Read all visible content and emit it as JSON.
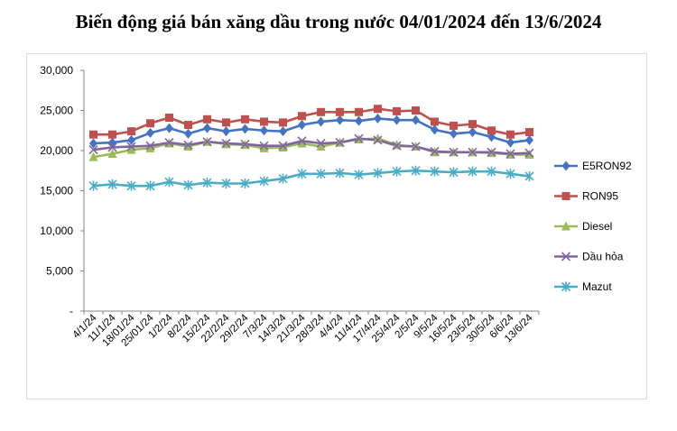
{
  "title": "Biến động giá bán xăng dầu trong nước 04/01/2024 đến 13/6/2024",
  "chart_data": {
    "type": "line",
    "title": "Biến động giá bán xăng dầu trong nước 04/01/2024 đến 13/6/2024",
    "xlabel": "",
    "ylabel": "",
    "ylim": [
      0,
      30000
    ],
    "yticks": [
      "-",
      "5,000",
      "10,000",
      "15,000",
      "20,000",
      "25,000",
      "30,000"
    ],
    "grid": false,
    "legend_position": "right",
    "categories": [
      "4/1/24",
      "11/1/24",
      "18/01/24",
      "25/01/24",
      "1/2/24",
      "8/2/24",
      "15/2/24",
      "22/2/24",
      "29/2/24",
      "7/3/24",
      "14/3/24",
      "21/3/24",
      "28/3/24",
      "4/4/24",
      "11/4/24",
      "17/4/24",
      "25/4/24",
      "2/5/24",
      "9/5/24",
      "16/5/24",
      "23/5/24",
      "30/5/24",
      "6/6/24",
      "13/6/24"
    ],
    "series": [
      {
        "name": "E5RON92",
        "color": "#4472c4",
        "marker": "diamond",
        "values": [
          20900,
          21000,
          21300,
          22200,
          22800,
          22100,
          22800,
          22400,
          22700,
          22500,
          22400,
          23200,
          23600,
          23800,
          23700,
          24000,
          23800,
          23800,
          22600,
          22100,
          22300,
          21700,
          21000,
          21300
        ]
      },
      {
        "name": "RON95",
        "color": "#c0504d",
        "marker": "square",
        "values": [
          22000,
          22000,
          22400,
          23400,
          24100,
          23200,
          23900,
          23500,
          23900,
          23600,
          23500,
          24300,
          24800,
          24800,
          24800,
          25200,
          24900,
          25000,
          23600,
          23100,
          23300,
          22500,
          22000,
          22300
        ]
      },
      {
        "name": "Diesel",
        "color": "#9bbb59",
        "marker": "triangle",
        "values": [
          19200,
          19600,
          20100,
          20300,
          20900,
          20500,
          21100,
          20800,
          20700,
          20300,
          20400,
          20900,
          20500,
          21000,
          21400,
          21500,
          20700,
          20500,
          19800,
          19800,
          19800,
          19700,
          19500,
          19500
        ]
      },
      {
        "name": "Dầu hỏa",
        "color": "#8064a2",
        "marker": "x",
        "values": [
          20100,
          20400,
          20500,
          20600,
          21000,
          20700,
          21100,
          20900,
          20800,
          20600,
          20600,
          21200,
          20900,
          21000,
          21500,
          21300,
          20600,
          20500,
          19900,
          19800,
          19800,
          19800,
          19600,
          19700
        ]
      },
      {
        "name": "Mazut",
        "color": "#4bacc6",
        "marker": "asterisk",
        "values": [
          15600,
          15800,
          15600,
          15600,
          16100,
          15700,
          16000,
          15900,
          15900,
          16200,
          16500,
          17100,
          17100,
          17200,
          17000,
          17200,
          17400,
          17500,
          17400,
          17300,
          17400,
          17400,
          17100,
          16800
        ]
      }
    ]
  }
}
